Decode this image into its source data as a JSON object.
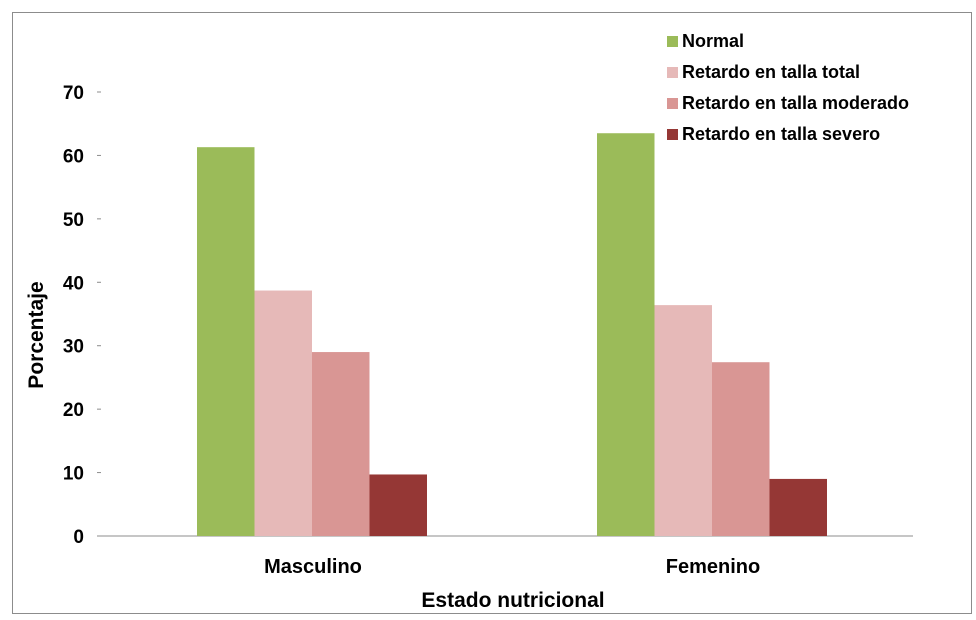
{
  "chart_data": {
    "type": "bar",
    "title": "",
    "xlabel": "Estado nutricional",
    "ylabel": "Porcentaje",
    "ylim": [
      0,
      70
    ],
    "yticks": [
      0,
      10,
      20,
      30,
      40,
      50,
      60,
      70
    ],
    "grid": false,
    "legend_position": "top-right",
    "categories": [
      "Masculino",
      "Femenino"
    ],
    "series": [
      {
        "name": "Normal",
        "color": "#9bbb59",
        "values": [
          61.3,
          63.5
        ]
      },
      {
        "name": "Retardo en talla total",
        "color": "#e6b9b8",
        "values": [
          38.7,
          36.4
        ]
      },
      {
        "name": "Retardo en talla moderado",
        "color": "#d99694",
        "values": [
          29.0,
          27.4
        ]
      },
      {
        "name": "Retardo en talla severo",
        "color": "#953735",
        "values": [
          9.7,
          9.0
        ]
      }
    ]
  }
}
